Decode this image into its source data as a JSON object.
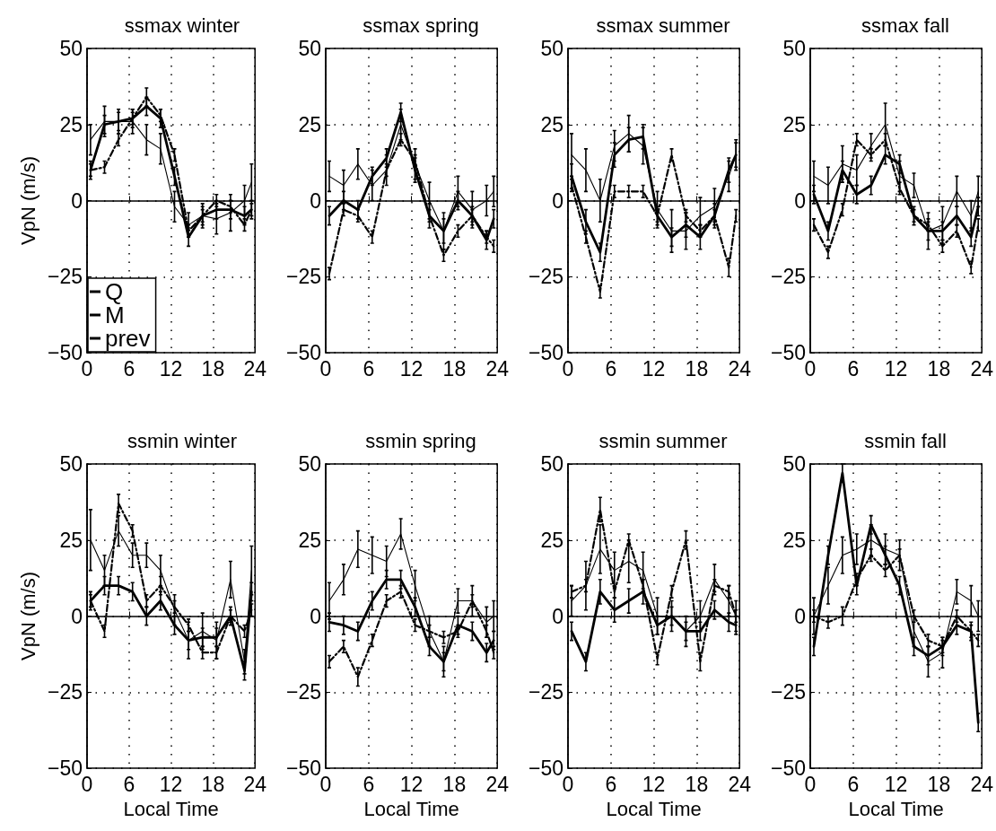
{
  "chart_data": [
    {
      "type": "line",
      "title": "ssmax winter",
      "ylabel": "VpN (m/s)",
      "x": [
        0.5,
        2.5,
        4.5,
        6.5,
        8.5,
        10.5,
        12.5,
        14.5,
        16.5,
        18.5,
        20.5,
        22.5,
        23.5
      ],
      "xlim": [
        0,
        24
      ],
      "xticks": [
        0,
        6,
        12,
        18,
        24
      ],
      "ylim": [
        -50,
        50
      ],
      "yticks": [
        -50,
        -25,
        0,
        25,
        50
      ],
      "grid": true,
      "legend": "bottom left",
      "series": [
        {
          "name": "Q",
          "color": "#000000",
          "line_style": "solid",
          "values": [
            10,
            25,
            26,
            27,
            31,
            27,
            8,
            -12,
            -5,
            -3,
            -3,
            -5,
            -3
          ],
          "errors": [
            3,
            3,
            3,
            3,
            3,
            3,
            3,
            3,
            3,
            3,
            3,
            3,
            3
          ]
        },
        {
          "name": "M",
          "color": "#000000",
          "line_style": "dashed",
          "values": [
            10,
            11,
            20,
            27,
            34,
            28,
            15,
            -10,
            -5,
            0,
            -2,
            -8,
            -3
          ],
          "errors": [
            2,
            2,
            2,
            2,
            3,
            2,
            2,
            2,
            2,
            2,
            2,
            2,
            2
          ]
        },
        {
          "name": "prev",
          "color": "#000000",
          "line_style": "solid",
          "values": [
            20,
            26,
            26,
            26,
            20,
            17,
            -2,
            -8,
            -5,
            -6,
            -4,
            0,
            6
          ],
          "errors": [
            5,
            5,
            4,
            4,
            5,
            5,
            5,
            4,
            4,
            5,
            6,
            5,
            6
          ]
        }
      ]
    },
    {
      "type": "line",
      "title": "ssmax spring",
      "x": [
        0.5,
        2.5,
        4.5,
        6.5,
        8.5,
        10.5,
        12.5,
        14.5,
        16.5,
        18.5,
        20.5,
        22.5,
        23.5
      ],
      "xlim": [
        0,
        24
      ],
      "xticks": [
        0,
        6,
        12,
        18,
        24
      ],
      "ylim": [
        -50,
        50
      ],
      "yticks": [
        -50,
        -25,
        0,
        25,
        50
      ],
      "grid": true,
      "series": [
        {
          "color": "#000000",
          "line_style": "solid",
          "values": [
            -5,
            0,
            -3,
            8,
            14,
            29,
            10,
            -5,
            -10,
            0,
            -5,
            -13,
            -6
          ],
          "errors": [
            3,
            3,
            3,
            3,
            3,
            3,
            4,
            4,
            4,
            3,
            3,
            3,
            3
          ]
        },
        {
          "color": "#000000",
          "line_style": "dashed",
          "values": [
            -24,
            -3,
            -5,
            -12,
            10,
            20,
            13,
            -5,
            -18,
            -10,
            -5,
            -12,
            -15
          ],
          "errors": [
            2,
            2,
            2,
            2,
            2,
            2,
            2,
            2,
            2,
            2,
            2,
            2,
            2
          ]
        },
        {
          "color": "#000000",
          "line_style": "solid",
          "values": [
            8,
            5,
            12,
            5,
            10,
            25,
            12,
            0,
            -10,
            3,
            -3,
            0,
            3
          ],
          "errors": [
            5,
            5,
            5,
            5,
            5,
            5,
            5,
            6,
            6,
            5,
            6,
            5,
            5
          ]
        }
      ]
    },
    {
      "type": "line",
      "title": "ssmax summer",
      "x": [
        0.5,
        2.5,
        4.5,
        6.5,
        8.5,
        10.5,
        12.5,
        14.5,
        16.5,
        18.5,
        20.5,
        22.5,
        23.5
      ],
      "xlim": [
        0,
        24
      ],
      "xticks": [
        0,
        6,
        12,
        18,
        24
      ],
      "ylim": [
        -50,
        50
      ],
      "yticks": [
        -50,
        -25,
        0,
        25,
        50
      ],
      "grid": true,
      "series": [
        {
          "color": "#000000",
          "line_style": "solid",
          "values": [
            8,
            -7,
            -17,
            15,
            20,
            21,
            -5,
            -12,
            -8,
            -12,
            -5,
            10,
            15
          ],
          "errors": [
            4,
            4,
            3,
            4,
            4,
            4,
            3,
            3,
            4,
            4,
            4,
            4,
            4
          ]
        },
        {
          "color": "#000000",
          "line_style": "dashed",
          "values": [
            5,
            -12,
            -30,
            3,
            3,
            3,
            -5,
            15,
            -5,
            -10,
            -5,
            -22,
            -5
          ],
          "errors": [
            2,
            2,
            2,
            2,
            2,
            2,
            2,
            2,
            2,
            2,
            2,
            3,
            2
          ]
        },
        {
          "color": "#000000",
          "line_style": "solid",
          "values": [
            15,
            10,
            0,
            18,
            22,
            18,
            -3,
            -10,
            -10,
            -5,
            -2,
            8,
            15
          ],
          "errors": [
            7,
            7,
            7,
            5,
            6,
            6,
            6,
            7,
            6,
            6,
            6,
            5,
            5
          ]
        }
      ]
    },
    {
      "type": "line",
      "title": "ssmax fall",
      "x": [
        0.5,
        2.5,
        4.5,
        6.5,
        8.5,
        10.5,
        12.5,
        14.5,
        16.5,
        18.5,
        20.5,
        22.5,
        23.5
      ],
      "xlim": [
        0,
        24
      ],
      "xticks": [
        0,
        6,
        12,
        18,
        24
      ],
      "ylim": [
        -50,
        50
      ],
      "yticks": [
        -50,
        -25,
        0,
        25,
        50
      ],
      "grid": true,
      "series": [
        {
          "color": "#000000",
          "line_style": "solid",
          "values": [
            2,
            -10,
            10,
            2,
            5,
            15,
            12,
            -5,
            -10,
            -10,
            -5,
            -12,
            -2
          ],
          "errors": [
            3,
            3,
            3,
            3,
            3,
            3,
            3,
            3,
            3,
            3,
            3,
            3,
            3
          ]
        },
        {
          "color": "#000000",
          "line_style": "dashed",
          "values": [
            -8,
            -17,
            -3,
            20,
            15,
            20,
            4,
            -5,
            -8,
            -15,
            -10,
            -22,
            -8
          ],
          "errors": [
            2,
            2,
            2,
            2,
            2,
            2,
            2,
            2,
            2,
            2,
            2,
            2,
            2
          ]
        },
        {
          "color": "#000000",
          "line_style": "solid",
          "values": [
            8,
            5,
            12,
            10,
            18,
            25,
            8,
            5,
            -10,
            -8,
            3,
            -5,
            3
          ],
          "errors": [
            5,
            6,
            6,
            5,
            4,
            7,
            5,
            4,
            6,
            6,
            5,
            5,
            5
          ]
        }
      ]
    },
    {
      "type": "line",
      "title": "ssmin winter",
      "xlabel": "Local Time",
      "ylabel": "VpN (m/s)",
      "x": [
        0.5,
        2.5,
        4.5,
        6.5,
        8.5,
        10.5,
        12.5,
        14.5,
        16.5,
        18.5,
        20.5,
        22.5,
        23.5
      ],
      "xlim": [
        0,
        24
      ],
      "xticks": [
        0,
        6,
        12,
        18,
        24
      ],
      "ylim": [
        -50,
        50
      ],
      "yticks": [
        -50,
        -25,
        0,
        25,
        50
      ],
      "grid": true,
      "series": [
        {
          "color": "#000000",
          "line_style": "solid",
          "values": [
            5,
            10,
            10,
            8,
            0,
            5,
            -3,
            -8,
            -7,
            -7,
            0,
            -18,
            8
          ],
          "errors": [
            3,
            3,
            3,
            3,
            3,
            3,
            3,
            3,
            3,
            3,
            3,
            3,
            3
          ]
        },
        {
          "color": "#000000",
          "line_style": "dashed",
          "values": [
            5,
            -5,
            37,
            28,
            5,
            10,
            3,
            -3,
            -12,
            -12,
            0,
            -5,
            2
          ],
          "errors": [
            2,
            2,
            3,
            2,
            2,
            3,
            2,
            2,
            2,
            2,
            2,
            2,
            2
          ]
        },
        {
          "color": "#000000",
          "line_style": "solid",
          "values": [
            25,
            15,
            28,
            20,
            20,
            15,
            2,
            -8,
            -5,
            -8,
            12,
            -15,
            15
          ],
          "errors": [
            10,
            5,
            5,
            4,
            4,
            5,
            5,
            6,
            6,
            6,
            6,
            4,
            8
          ]
        }
      ]
    },
    {
      "type": "line",
      "title": "ssmin spring",
      "xlabel": "Local Time",
      "x": [
        0.5,
        2.5,
        4.5,
        6.5,
        8.5,
        10.5,
        12.5,
        14.5,
        16.5,
        18.5,
        20.5,
        22.5,
        23.5
      ],
      "xlim": [
        0,
        24
      ],
      "xticks": [
        0,
        6,
        12,
        18,
        24
      ],
      "ylim": [
        -50,
        50
      ],
      "yticks": [
        -50,
        -25,
        0,
        25,
        50
      ],
      "grid": true,
      "series": [
        {
          "color": "#000000",
          "line_style": "solid",
          "values": [
            -2,
            -3,
            -5,
            5,
            12,
            12,
            3,
            -10,
            -15,
            -3,
            -5,
            -12,
            -8
          ],
          "errors": [
            3,
            3,
            3,
            3,
            3,
            3,
            3,
            3,
            3,
            3,
            3,
            3,
            3
          ]
        },
        {
          "color": "#000000",
          "line_style": "dashed",
          "values": [
            -15,
            -10,
            -20,
            -8,
            5,
            8,
            -3,
            -5,
            -7,
            -5,
            5,
            -5,
            -12
          ],
          "errors": [
            2,
            2,
            3,
            2,
            2,
            2,
            2,
            2,
            2,
            2,
            2,
            2,
            2
          ]
        },
        {
          "color": "#000000",
          "line_style": "solid",
          "values": [
            5,
            12,
            22,
            20,
            18,
            27,
            10,
            -5,
            -15,
            5,
            5,
            -2,
            0
          ],
          "errors": [
            6,
            5,
            6,
            6,
            5,
            5,
            5,
            5,
            5,
            4,
            5,
            5,
            5
          ]
        }
      ]
    },
    {
      "type": "line",
      "title": "ssmin summer",
      "xlabel": "Local Time",
      "x": [
        0.5,
        2.5,
        4.5,
        6.5,
        8.5,
        10.5,
        12.5,
        14.5,
        16.5,
        18.5,
        20.5,
        22.5,
        23.5
      ],
      "xlim": [
        0,
        24
      ],
      "xticks": [
        0,
        6,
        12,
        18,
        24
      ],
      "ylim": [
        -50,
        50
      ],
      "yticks": [
        -50,
        -25,
        0,
        25,
        50
      ],
      "grid": true,
      "series": [
        {
          "color": "#000000",
          "line_style": "solid",
          "values": [
            -5,
            -15,
            8,
            2,
            5,
            8,
            -3,
            0,
            -5,
            -5,
            2,
            -2,
            -3
          ],
          "errors": [
            3,
            3,
            4,
            4,
            4,
            4,
            3,
            3,
            3,
            3,
            3,
            3,
            3
          ]
        },
        {
          "color": "#000000",
          "line_style": "dashed",
          "values": [
            8,
            10,
            35,
            8,
            25,
            10,
            -14,
            8,
            25,
            -15,
            10,
            8,
            0
          ],
          "errors": [
            2,
            2,
            4,
            2,
            2,
            2,
            2,
            2,
            3,
            3,
            2,
            2,
            2
          ]
        },
        {
          "color": "#000000",
          "line_style": "solid",
          "values": [
            5,
            10,
            22,
            15,
            18,
            15,
            0,
            0,
            -5,
            0,
            12,
            5,
            0
          ],
          "errors": [
            5,
            8,
            8,
            6,
            7,
            6,
            6,
            5,
            5,
            5,
            5,
            5,
            5
          ]
        }
      ]
    },
    {
      "type": "line",
      "title": "ssmin fall",
      "xlabel": "Local Time",
      "x": [
        0.5,
        2.5,
        4.5,
        6.5,
        8.5,
        10.5,
        12.5,
        14.5,
        16.5,
        18.5,
        20.5,
        22.5,
        23.5
      ],
      "xlim": [
        0,
        24
      ],
      "xticks": [
        0,
        6,
        12,
        18,
        24
      ],
      "ylim": [
        -50,
        50
      ],
      "yticks": [
        -50,
        -25,
        0,
        25,
        50
      ],
      "grid": true,
      "series": [
        {
          "color": "#000000",
          "line_style": "solid",
          "values": [
            -10,
            20,
            47,
            10,
            30,
            20,
            10,
            -10,
            -13,
            -10,
            -3,
            -5,
            -35
          ],
          "errors": [
            3,
            3,
            3,
            3,
            3,
            3,
            3,
            3,
            3,
            3,
            3,
            3,
            3
          ]
        },
        {
          "color": "#000000",
          "line_style": "dashed",
          "values": [
            0,
            -2,
            0,
            12,
            20,
            15,
            20,
            0,
            -8,
            -10,
            0,
            -5,
            -8
          ],
          "errors": [
            2,
            2,
            3,
            2,
            2,
            2,
            2,
            2,
            2,
            2,
            2,
            2,
            2
          ]
        },
        {
          "color": "#000000",
          "line_style": "solid",
          "values": [
            0,
            10,
            20,
            22,
            25,
            22,
            20,
            -5,
            -15,
            -12,
            8,
            5,
            0
          ],
          "errors": [
            6,
            6,
            6,
            5,
            5,
            5,
            5,
            5,
            5,
            5,
            4,
            5,
            5
          ]
        }
      ]
    }
  ]
}
